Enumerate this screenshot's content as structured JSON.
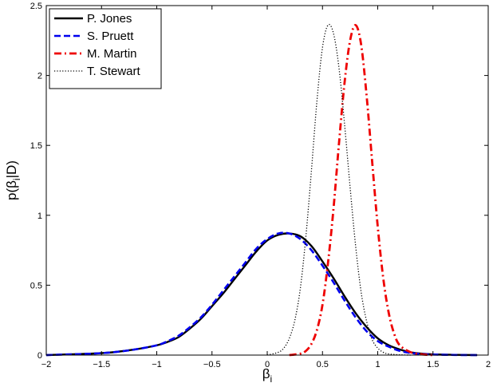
{
  "chart_data": {
    "type": "line",
    "title": "",
    "xlabel": "β",
    "xlabel_sub": "i",
    "ylabel_pre": "p(β",
    "ylabel_sub": "i",
    "ylabel_post": "|D)",
    "xlim": [
      -2,
      2
    ],
    "ylim": [
      0,
      2.5
    ],
    "xticks": [
      -2,
      -1.5,
      -1,
      -0.5,
      0,
      0.5,
      1,
      1.5,
      2
    ],
    "xtick_labels": [
      "−2",
      "−1.5",
      "−1",
      "−0.5",
      "0",
      "0.5",
      "1",
      "1.5",
      "2"
    ],
    "yticks": [
      0,
      0.5,
      1,
      1.5,
      2,
      2.5
    ],
    "ytick_labels": [
      "0",
      "0.5",
      "1",
      "1.5",
      "2",
      "2.5"
    ],
    "grid": false,
    "legend_position": "top-left",
    "series": [
      {
        "name": "P. Jones",
        "color": "#000000",
        "style": "solid",
        "x": [
          -2.0,
          -1.8,
          -1.6,
          -1.4,
          -1.2,
          -1.0,
          -0.9,
          -0.8,
          -0.7,
          -0.6,
          -0.5,
          -0.4,
          -0.3,
          -0.2,
          -0.1,
          0.0,
          0.1,
          0.2,
          0.3,
          0.4,
          0.5,
          0.6,
          0.7,
          0.8,
          0.9,
          1.0,
          1.1,
          1.2,
          1.3,
          1.4,
          1.5,
          1.7,
          1.9
        ],
        "y": [
          0.0,
          0.005,
          0.01,
          0.02,
          0.04,
          0.07,
          0.095,
          0.13,
          0.19,
          0.26,
          0.35,
          0.44,
          0.54,
          0.64,
          0.74,
          0.82,
          0.86,
          0.87,
          0.85,
          0.78,
          0.67,
          0.55,
          0.42,
          0.3,
          0.2,
          0.12,
          0.07,
          0.04,
          0.02,
          0.01,
          0.005,
          0.002,
          0.0
        ]
      },
      {
        "name": "S. Pruett",
        "color": "#0000ee",
        "style": "dashed",
        "x": [
          -2.0,
          -1.8,
          -1.6,
          -1.4,
          -1.2,
          -1.0,
          -0.9,
          -0.8,
          -0.7,
          -0.6,
          -0.5,
          -0.4,
          -0.3,
          -0.2,
          -0.1,
          0.0,
          0.1,
          0.2,
          0.3,
          0.4,
          0.5,
          0.6,
          0.7,
          0.8,
          0.9,
          1.0,
          1.1,
          1.2,
          1.3,
          1.4,
          1.5,
          1.7,
          1.9
        ],
        "y": [
          0.0,
          0.005,
          0.01,
          0.02,
          0.04,
          0.07,
          0.1,
          0.14,
          0.2,
          0.27,
          0.36,
          0.46,
          0.56,
          0.66,
          0.76,
          0.83,
          0.87,
          0.87,
          0.83,
          0.75,
          0.64,
          0.52,
          0.39,
          0.27,
          0.17,
          0.1,
          0.06,
          0.03,
          0.015,
          0.008,
          0.004,
          0.001,
          0.0
        ]
      },
      {
        "name": "M. Martin",
        "color": "#ee0000",
        "style": "dashdot",
        "x": [
          0.2,
          0.3,
          0.35,
          0.4,
          0.45,
          0.5,
          0.55,
          0.6,
          0.65,
          0.7,
          0.75,
          0.8,
          0.85,
          0.9,
          0.95,
          1.0,
          1.05,
          1.1,
          1.15,
          1.2,
          1.3,
          1.4,
          1.5
        ],
        "y": [
          0.0,
          0.01,
          0.03,
          0.08,
          0.18,
          0.36,
          0.66,
          1.05,
          1.52,
          1.95,
          2.25,
          2.36,
          2.22,
          1.85,
          1.38,
          0.92,
          0.55,
          0.3,
          0.15,
          0.07,
          0.02,
          0.005,
          0.0
        ]
      },
      {
        "name": "T. Stewart",
        "color": "#000000",
        "style": "dotted",
        "x": [
          0.0,
          0.1,
          0.15,
          0.2,
          0.25,
          0.3,
          0.35,
          0.4,
          0.45,
          0.5,
          0.55,
          0.6,
          0.65,
          0.7,
          0.75,
          0.8,
          0.85,
          0.9,
          0.95,
          1.0,
          1.05,
          1.1,
          1.2,
          1.3
        ],
        "y": [
          0.0,
          0.02,
          0.05,
          0.12,
          0.25,
          0.48,
          0.85,
          1.32,
          1.82,
          2.2,
          2.36,
          2.3,
          2.05,
          1.65,
          1.2,
          0.78,
          0.45,
          0.24,
          0.11,
          0.05,
          0.02,
          0.008,
          0.002,
          0.0
        ]
      }
    ]
  }
}
